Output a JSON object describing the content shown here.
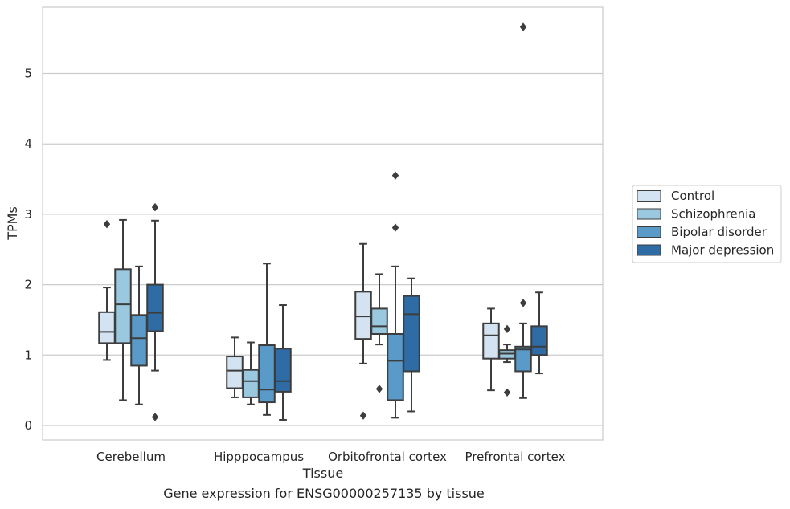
{
  "chart_data": {
    "type": "box",
    "title": "",
    "xlabel": "Tissue",
    "ylabel": "TPMs",
    "caption": "Gene expression for ENSG00000257135 by tissue",
    "categories": [
      "Cerebellum",
      "Hipppocampus",
      "Orbitofrontal cortex",
      "Prefrontal cortex"
    ],
    "yticks": [
      0,
      1,
      2,
      3,
      4,
      5
    ],
    "ylim": [
      -0.2,
      5.95
    ],
    "grid": "horizontal",
    "legend_position": "center-right",
    "series": [
      {
        "name": "Control",
        "color": "#d4e3f2",
        "boxes": [
          {
            "whisker_low": 0.93,
            "q1": 1.17,
            "median": 1.33,
            "q3": 1.61,
            "whisker_high": 1.96,
            "outliers": [
              2.86
            ]
          },
          {
            "whisker_low": 0.4,
            "q1": 0.53,
            "median": 0.78,
            "q3": 0.98,
            "whisker_high": 1.25,
            "outliers": []
          },
          {
            "whisker_low": 0.88,
            "q1": 1.23,
            "median": 1.55,
            "q3": 1.9,
            "whisker_high": 2.58,
            "outliers": [
              0.14
            ]
          },
          {
            "whisker_low": 0.5,
            "q1": 0.95,
            "median": 1.28,
            "q3": 1.45,
            "whisker_high": 1.66,
            "outliers": []
          }
        ]
      },
      {
        "name": "Schizophrenia",
        "color": "#9ac8df",
        "boxes": [
          {
            "whisker_low": 0.36,
            "q1": 1.17,
            "median": 1.72,
            "q3": 2.22,
            "whisker_high": 2.92,
            "outliers": []
          },
          {
            "whisker_low": 0.3,
            "q1": 0.4,
            "median": 0.63,
            "q3": 0.79,
            "whisker_high": 1.18,
            "outliers": []
          },
          {
            "whisker_low": 1.15,
            "q1": 1.3,
            "median": 1.41,
            "q3": 1.66,
            "whisker_high": 2.15,
            "outliers": [
              0.52
            ]
          },
          {
            "whisker_low": 0.9,
            "q1": 0.95,
            "median": 1.02,
            "q3": 1.07,
            "whisker_high": 1.15,
            "outliers": [
              1.37,
              0.47
            ]
          }
        ]
      },
      {
        "name": "Bipolar disorder",
        "color": "#5a9ac8",
        "boxes": [
          {
            "whisker_low": 0.3,
            "q1": 0.85,
            "median": 1.24,
            "q3": 1.57,
            "whisker_high": 2.26,
            "outliers": []
          },
          {
            "whisker_low": 0.15,
            "q1": 0.33,
            "median": 0.51,
            "q3": 1.14,
            "whisker_high": 2.3,
            "outliers": []
          },
          {
            "whisker_low": 0.11,
            "q1": 0.36,
            "median": 0.92,
            "q3": 1.3,
            "whisker_high": 2.26,
            "outliers": [
              3.55,
              2.81
            ]
          },
          {
            "whisker_low": 0.39,
            "q1": 0.77,
            "median": 1.08,
            "q3": 1.12,
            "whisker_high": 1.45,
            "outliers": [
              5.66,
              1.74
            ]
          }
        ]
      },
      {
        "name": "Major depression",
        "color": "#2f6ca6",
        "boxes": [
          {
            "whisker_low": 0.78,
            "q1": 1.34,
            "median": 1.6,
            "q3": 2.0,
            "whisker_high": 2.91,
            "outliers": [
              3.1,
              0.12
            ]
          },
          {
            "whisker_low": 0.08,
            "q1": 0.48,
            "median": 0.63,
            "q3": 1.09,
            "whisker_high": 1.71,
            "outliers": []
          },
          {
            "whisker_low": 0.2,
            "q1": 0.77,
            "median": 1.58,
            "q3": 1.84,
            "whisker_high": 2.09,
            "outliers": []
          },
          {
            "whisker_low": 0.74,
            "q1": 1.0,
            "median": 1.12,
            "q3": 1.41,
            "whisker_high": 1.89,
            "outliers": []
          }
        ]
      }
    ]
  }
}
